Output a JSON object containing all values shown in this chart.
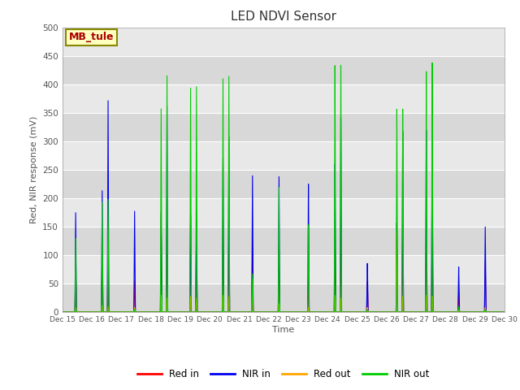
{
  "title": "LED NDVI Sensor",
  "xlabel": "Time",
  "ylabel": "Red, NIR response (mV)",
  "ylim": [
    0,
    500
  ],
  "xlim": [
    0,
    15
  ],
  "x_tick_labels": [
    "Dec 15",
    "Dec 16",
    "Dec 17",
    "Dec 18",
    "Dec 19",
    "Dec 20",
    "Dec 21",
    "Dec 22",
    "Dec 23",
    "Dec 24",
    "Dec 25",
    "Dec 26",
    "Dec 27",
    "Dec 28",
    "Dec 29",
    "Dec 30"
  ],
  "annotation_text": "MB_tule",
  "annotation_color": "#AA0000",
  "annotation_bg": "#FFFFC0",
  "annotation_border": "#888800",
  "colors": {
    "red_in": "#FF0000",
    "nir_in": "#0000EE",
    "red_out": "#FFA500",
    "nir_out": "#00CC00"
  },
  "legend_labels": [
    "Red in",
    "NIR in",
    "Red out",
    "NIR out"
  ],
  "bg_color": "#E8E8E8",
  "band_colors": [
    "#D8D8D8",
    "#E8E8E8"
  ],
  "grid_color": "#FFFFFF",
  "spikes": [
    {
      "day": 0.45,
      "red_in": 90,
      "nir_in": 175,
      "red_out": 8,
      "nir_out": 130
    },
    {
      "day": 1.35,
      "red_in": 95,
      "nir_in": 215,
      "red_out": 12,
      "nir_out": 195
    },
    {
      "day": 1.55,
      "red_in": 88,
      "nir_in": 375,
      "red_out": 10,
      "nir_out": 200
    },
    {
      "day": 2.45,
      "red_in": 55,
      "nir_in": 180,
      "red_out": 8,
      "nir_out": 5
    },
    {
      "day": 3.35,
      "red_in": 175,
      "nir_in": 180,
      "red_out": 30,
      "nir_out": 365
    },
    {
      "day": 3.55,
      "red_in": 170,
      "nir_in": 370,
      "red_out": 25,
      "nir_out": 425
    },
    {
      "day": 4.35,
      "red_in": 178,
      "nir_in": 175,
      "red_out": 28,
      "nir_out": 405
    },
    {
      "day": 4.55,
      "red_in": 170,
      "nir_in": 178,
      "red_out": 25,
      "nir_out": 408
    },
    {
      "day": 5.45,
      "red_in": 170,
      "nir_in": 280,
      "red_out": 30,
      "nir_out": 425
    },
    {
      "day": 5.65,
      "red_in": 165,
      "nir_in": 320,
      "red_out": 28,
      "nir_out": 430
    },
    {
      "day": 6.45,
      "red_in": 130,
      "nir_in": 250,
      "red_out": 60,
      "nir_out": 70
    },
    {
      "day": 7.35,
      "red_in": 125,
      "nir_in": 250,
      "red_out": 15,
      "nir_out": 230
    },
    {
      "day": 8.35,
      "red_in": 65,
      "nir_in": 235,
      "red_out": 8,
      "nir_out": 160
    },
    {
      "day": 9.25,
      "red_in": 130,
      "nir_in": 270,
      "red_out": 30,
      "nir_out": 450
    },
    {
      "day": 9.45,
      "red_in": 175,
      "nir_in": 355,
      "red_out": 25,
      "nir_out": 450
    },
    {
      "day": 10.35,
      "red_in": 55,
      "nir_in": 88,
      "red_out": 8,
      "nir_out": 5
    },
    {
      "day": 11.35,
      "red_in": 160,
      "nir_in": 160,
      "red_out": 145,
      "nir_out": 365
    },
    {
      "day": 11.55,
      "red_in": 155,
      "nir_in": 325,
      "red_out": 28,
      "nir_out": 365
    },
    {
      "day": 12.35,
      "red_in": 165,
      "nir_in": 325,
      "red_out": 30,
      "nir_out": 430
    },
    {
      "day": 12.55,
      "red_in": 160,
      "nir_in": 320,
      "red_out": 28,
      "nir_out": 445
    },
    {
      "day": 13.45,
      "red_in": 35,
      "nir_in": 80,
      "red_out": 5,
      "nir_out": 10
    },
    {
      "day": 14.35,
      "red_in": 90,
      "nir_in": 150,
      "red_out": 8,
      "nir_out": 5
    }
  ]
}
